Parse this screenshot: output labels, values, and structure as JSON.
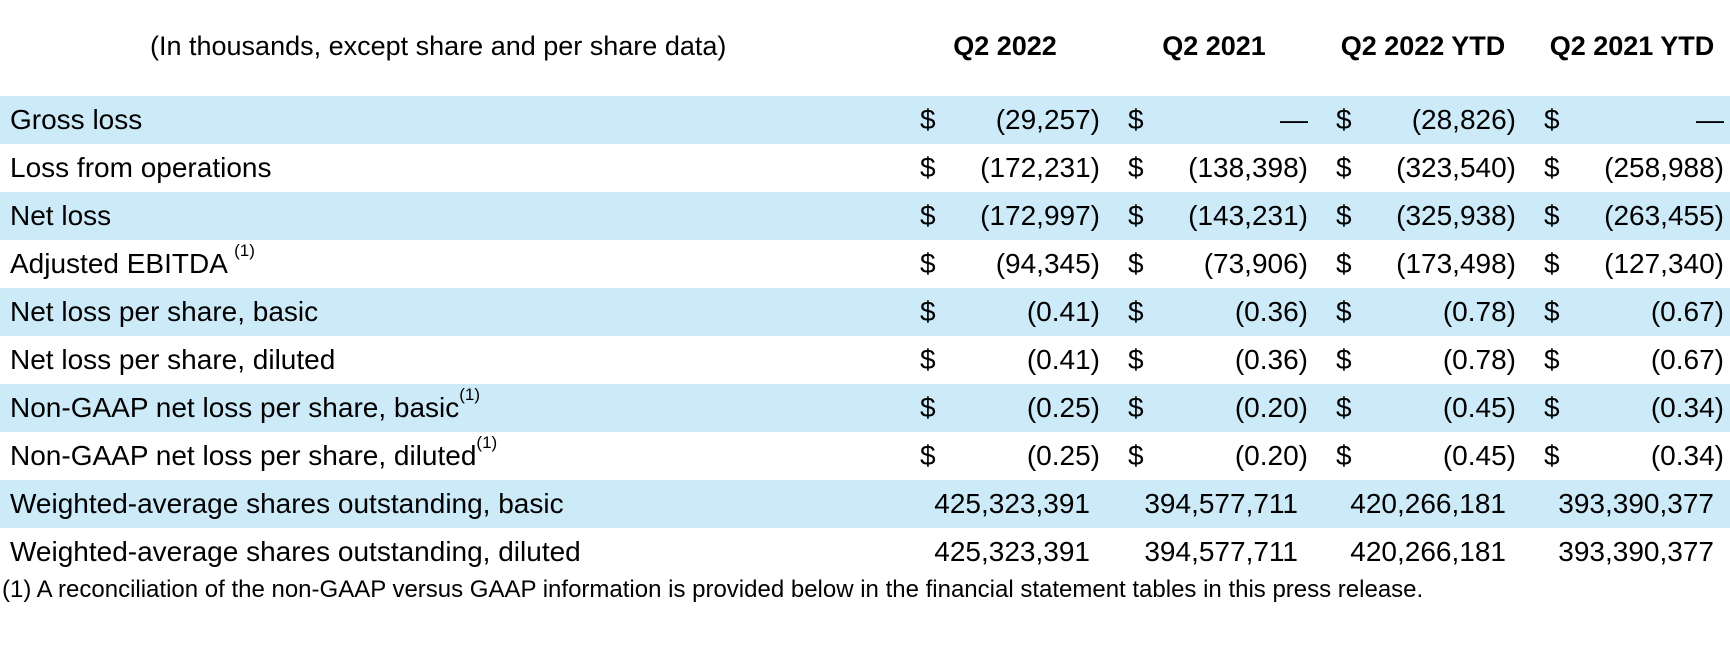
{
  "header": {
    "label": "(In thousands, except share and per share data)",
    "columns": [
      "Q2 2022",
      "Q2 2021",
      "Q2 2022 YTD",
      "Q2 2021 YTD"
    ]
  },
  "currency_symbol": "$",
  "rows": [
    {
      "label": "Gross loss",
      "note": "",
      "shaded": true,
      "currency": true,
      "values": [
        "(29,257)",
        "—",
        "(28,826)",
        "—"
      ]
    },
    {
      "label": "Loss from operations",
      "note": "",
      "shaded": false,
      "currency": true,
      "values": [
        "(172,231)",
        "(138,398)",
        "(323,540)",
        "(258,988)"
      ]
    },
    {
      "label": "Net loss",
      "note": "",
      "shaded": true,
      "currency": true,
      "values": [
        "(172,997)",
        "(143,231)",
        "(325,938)",
        "(263,455)"
      ]
    },
    {
      "label": "Adjusted EBITDA ",
      "note": "(1)",
      "shaded": false,
      "currency": true,
      "values": [
        "(94,345)",
        "(73,906)",
        "(173,498)",
        "(127,340)"
      ]
    },
    {
      "label": "Net loss per share, basic",
      "note": "",
      "shaded": true,
      "currency": true,
      "values": [
        "(0.41)",
        "(0.36)",
        "(0.78)",
        "(0.67)"
      ]
    },
    {
      "label": "Net loss per share, diluted",
      "note": "",
      "shaded": false,
      "currency": true,
      "values": [
        "(0.41)",
        "(0.36)",
        "(0.78)",
        "(0.67)"
      ]
    },
    {
      "label": "Non-GAAP net loss per share, basic",
      "note": "(1)",
      "shaded": true,
      "currency": true,
      "values": [
        "(0.25)",
        "(0.20)",
        "(0.45)",
        "(0.34)"
      ]
    },
    {
      "label": "Non-GAAP net loss per share, diluted",
      "note": "(1)",
      "shaded": false,
      "currency": true,
      "values": [
        "(0.25)",
        "(0.20)",
        "(0.45)",
        "(0.34)"
      ]
    },
    {
      "label": "Weighted-average shares outstanding, basic",
      "note": "",
      "shaded": true,
      "currency": false,
      "values": [
        "425,323,391",
        "394,577,711",
        "420,266,181",
        "393,390,377"
      ]
    },
    {
      "label": "Weighted-average shares outstanding, diluted",
      "note": "",
      "shaded": false,
      "currency": false,
      "values": [
        "425,323,391",
        "394,577,711",
        "420,266,181",
        "393,390,377"
      ]
    }
  ],
  "footnote": "(1) A reconciliation of the non-GAAP versus GAAP information is provided below in the financial statement tables in this press release."
}
